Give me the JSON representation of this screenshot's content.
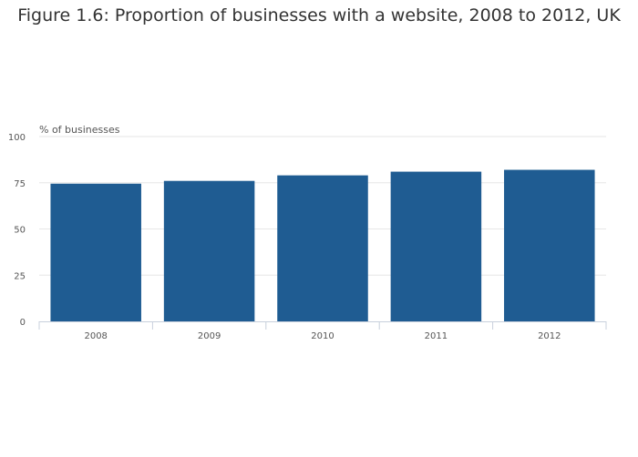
{
  "chart_data": {
    "type": "bar",
    "title": "Figure 1.6: Proportion of businesses with a website, 2008 to 2012, UK",
    "ylabel": "% of businesses",
    "xlabel": "",
    "categories": [
      "2008",
      "2009",
      "2010",
      "2011",
      "2012"
    ],
    "values": [
      74.5,
      76,
      79,
      81,
      82
    ],
    "ylim": [
      0,
      100
    ],
    "yticks": [
      0,
      25,
      50,
      75,
      100
    ],
    "grid": true,
    "bar_color": "#1f5c92"
  }
}
